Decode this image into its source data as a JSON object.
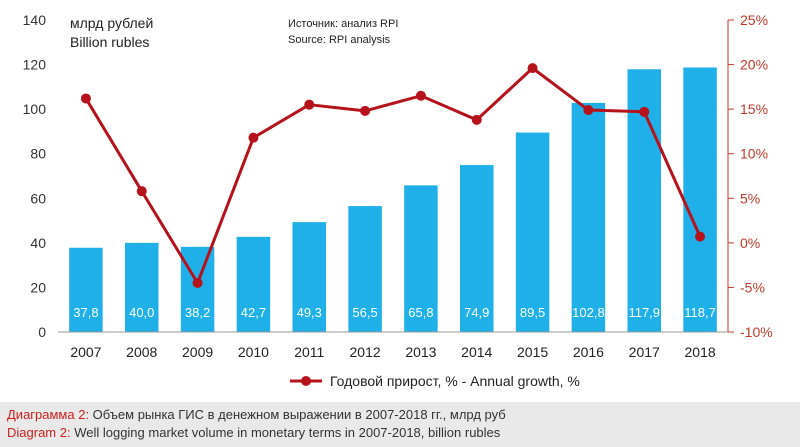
{
  "colors": {
    "bar": "#1fb0ea",
    "line": "#b5121b",
    "axis_right": "#c0392b",
    "axis_left": "#333333",
    "grid": "#cccccc",
    "caption_accent": "#cc1f1f"
  },
  "chart_data": {
    "type": "bar+line",
    "title_ru": "млрд рублей",
    "title_en": "Billion rubles",
    "source_ru": "Источник: анализ RPI",
    "source_en": "Source: RPI analysis",
    "categories": [
      "2007",
      "2008",
      "2009",
      "2010",
      "2011",
      "2012",
      "2013",
      "2014",
      "2015",
      "2016",
      "2017",
      "2018"
    ],
    "bar_values": [
      37.8,
      40.0,
      38.2,
      42.7,
      49.3,
      56.5,
      65.8,
      74.9,
      89.5,
      102.8,
      117.9,
      118.7
    ],
    "bar_labels": [
      "37,8",
      "40,0",
      "38,2",
      "42,7",
      "49,3",
      "56,5",
      "65,8",
      "74,9",
      "89,5",
      "102,8",
      "117,9",
      "118,7"
    ],
    "line_values": [
      16.2,
      5.8,
      -4.5,
      11.8,
      15.5,
      14.8,
      16.5,
      13.8,
      19.6,
      14.9,
      14.7,
      0.7
    ],
    "y_left": {
      "ylim": [
        0,
        140
      ],
      "ticks": [
        "0",
        "20",
        "40",
        "60",
        "80",
        "100",
        "120",
        "140"
      ]
    },
    "y_right": {
      "ylim": [
        -10,
        25
      ],
      "ticks": [
        "-10%",
        "-5%",
        "0%",
        "5%",
        "10%",
        "15%",
        "20%",
        "25%"
      ]
    },
    "legend": "Годовой прирост, % - Annual growth, %",
    "legend_placement": "bottom-center"
  },
  "caption": {
    "line1_label": "Диаграмма 2:",
    "line1_text": " Объем рынка ГИС в денежном выражении в 2007-2018 гг., млрд руб",
    "line2_label": "Diagram 2:",
    "line2_text": " Well logging market volume in monetary terms in 2007-2018, billion rubles"
  }
}
